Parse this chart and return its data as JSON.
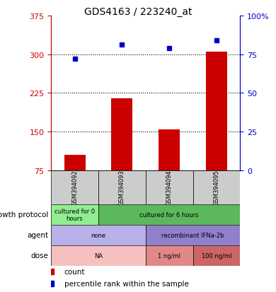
{
  "title": "GDS4163 / 223240_at",
  "samples": [
    "GSM394092",
    "GSM394093",
    "GSM394094",
    "GSM394095"
  ],
  "counts": [
    105,
    215,
    155,
    305
  ],
  "percentiles": [
    72,
    81,
    79,
    84
  ],
  "ylim_left": [
    75,
    375
  ],
  "ylim_right": [
    0,
    100
  ],
  "yticks_left": [
    75,
    150,
    225,
    300,
    375
  ],
  "yticks_right": [
    0,
    25,
    50,
    75,
    100
  ],
  "ytick_right_labels": [
    "0",
    "25",
    "50",
    "75",
    "100%"
  ],
  "hlines": [
    150,
    225,
    300
  ],
  "bar_color": "#cc0000",
  "dot_color": "#0000cc",
  "sample_box_color": "#cccccc",
  "left_axis_color": "#cc0000",
  "right_axis_color": "#0000cc",
  "row_configs": [
    {
      "label": "growth protocol",
      "spans": [
        {
          "start": 0,
          "end": 0,
          "text": "cultured for 0\nhours",
          "color": "#90ee90"
        },
        {
          "start": 1,
          "end": 3,
          "text": "cultured for 6 hours",
          "color": "#5cb85c"
        }
      ]
    },
    {
      "label": "agent",
      "spans": [
        {
          "start": 0,
          "end": 1,
          "text": "none",
          "color": "#b8b0e8"
        },
        {
          "start": 2,
          "end": 3,
          "text": "recombinant IFNa-2b",
          "color": "#9080cc"
        }
      ]
    },
    {
      "label": "dose",
      "spans": [
        {
          "start": 0,
          "end": 1,
          "text": "NA",
          "color": "#f5c0c0"
        },
        {
          "start": 2,
          "end": 2,
          "text": "1 ng/ml",
          "color": "#e08888"
        },
        {
          "start": 3,
          "end": 3,
          "text": "100 ng/ml",
          "color": "#cc6666"
        }
      ]
    }
  ]
}
